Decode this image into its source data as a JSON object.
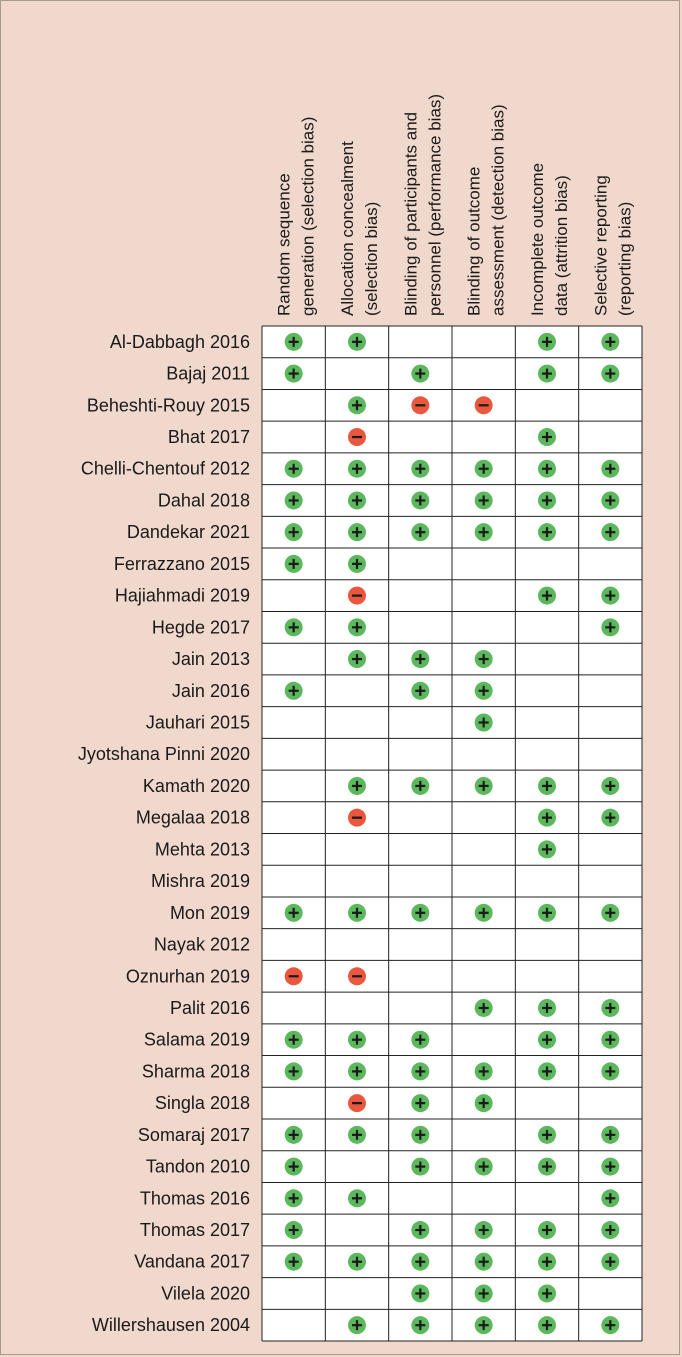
{
  "chart_data": {
    "type": "table",
    "columns": [
      [
        "Random sequence",
        "generation (selection bias)"
      ],
      [
        "Allocation concealment",
        "(selection bias)"
      ],
      [
        "Blinding of participants and",
        "personnel (performance bias)"
      ],
      [
        "Blinding of outcome",
        "assessment (detection bias)"
      ],
      [
        "Incomplete outcome",
        "data (attrition bias)"
      ],
      [
        "Selective reporting",
        "(reporting bias)"
      ]
    ],
    "rows": [
      {
        "study": "Al-Dabbagh 2016",
        "cells": [
          "+",
          "+",
          "",
          "",
          "+",
          "+"
        ]
      },
      {
        "study": "Bajaj 2011",
        "cells": [
          "+",
          "",
          "+",
          "",
          "+",
          "+"
        ]
      },
      {
        "study": "Beheshti-Rouy 2015",
        "cells": [
          "",
          "+",
          "-",
          "-",
          "",
          ""
        ]
      },
      {
        "study": "Bhat 2017",
        "cells": [
          "",
          "-",
          "",
          "",
          "+",
          ""
        ]
      },
      {
        "study": "Chelli-Chentouf 2012",
        "cells": [
          "+",
          "+",
          "+",
          "+",
          "+",
          "+"
        ]
      },
      {
        "study": "Dahal 2018",
        "cells": [
          "+",
          "+",
          "+",
          "+",
          "+",
          "+"
        ]
      },
      {
        "study": "Dandekar 2021",
        "cells": [
          "+",
          "+",
          "+",
          "+",
          "+",
          "+"
        ]
      },
      {
        "study": "Ferrazzano 2015",
        "cells": [
          "+",
          "+",
          "",
          "",
          "",
          ""
        ]
      },
      {
        "study": "Hajiahmadi 2019",
        "cells": [
          "",
          "-",
          "",
          "",
          "+",
          "+"
        ]
      },
      {
        "study": "Hegde 2017",
        "cells": [
          "+",
          "+",
          "",
          "",
          "",
          "+"
        ]
      },
      {
        "study": "Jain 2013",
        "cells": [
          "",
          "+",
          "+",
          "+",
          "",
          ""
        ]
      },
      {
        "study": "Jain 2016",
        "cells": [
          "+",
          "",
          "+",
          "+",
          "",
          ""
        ]
      },
      {
        "study": "Jauhari 2015",
        "cells": [
          "",
          "",
          "",
          "+",
          "",
          ""
        ]
      },
      {
        "study": "Jyotshana Pinni 2020",
        "cells": [
          "",
          "",
          "",
          "",
          "",
          ""
        ]
      },
      {
        "study": "Kamath 2020",
        "cells": [
          "",
          "+",
          "+",
          "+",
          "+",
          "+"
        ]
      },
      {
        "study": "Megalaa 2018",
        "cells": [
          "",
          "-",
          "",
          "",
          "+",
          "+"
        ]
      },
      {
        "study": "Mehta 2013",
        "cells": [
          "",
          "",
          "",
          "",
          "+",
          ""
        ]
      },
      {
        "study": "Mishra 2019",
        "cells": [
          "",
          "",
          "",
          "",
          "",
          ""
        ]
      },
      {
        "study": "Mon 2019",
        "cells": [
          "+",
          "+",
          "+",
          "+",
          "+",
          "+"
        ]
      },
      {
        "study": "Nayak 2012",
        "cells": [
          "",
          "",
          "",
          "",
          "",
          ""
        ]
      },
      {
        "study": "Oznurhan 2019",
        "cells": [
          "-",
          "-",
          "",
          "",
          "",
          ""
        ]
      },
      {
        "study": "Palit 2016",
        "cells": [
          "",
          "",
          "",
          "+",
          "+",
          "+"
        ]
      },
      {
        "study": "Salama 2019",
        "cells": [
          "+",
          "+",
          "+",
          "",
          "+",
          "+"
        ]
      },
      {
        "study": "Sharma 2018",
        "cells": [
          "+",
          "+",
          "+",
          "+",
          "+",
          "+"
        ]
      },
      {
        "study": "Singla 2018",
        "cells": [
          "",
          "-",
          "+",
          "+",
          "",
          ""
        ]
      },
      {
        "study": "Somaraj 2017",
        "cells": [
          "+",
          "+",
          "+",
          "",
          "+",
          "+"
        ]
      },
      {
        "study": "Tandon 2010",
        "cells": [
          "+",
          "",
          "+",
          "+",
          "+",
          "+"
        ]
      },
      {
        "study": "Thomas 2016",
        "cells": [
          "+",
          "+",
          "",
          "",
          "",
          "+"
        ]
      },
      {
        "study": "Thomas 2017",
        "cells": [
          "+",
          "",
          "+",
          "+",
          "+",
          "+"
        ]
      },
      {
        "study": "Vandana 2017",
        "cells": [
          "+",
          "+",
          "+",
          "+",
          "+",
          "+"
        ]
      },
      {
        "study": "Vilela 2020",
        "cells": [
          "",
          "",
          "+",
          "+",
          "+",
          ""
        ]
      },
      {
        "study": "Willershausen 2004",
        "cells": [
          "",
          "+",
          "+",
          "+",
          "+",
          "+"
        ]
      }
    ],
    "colors": {
      "low_risk": "#5cb85c",
      "high_risk": "#e9573f",
      "background": "#f0d8cc",
      "cell_fill": "#ffffff",
      "grid": "#222222"
    }
  }
}
